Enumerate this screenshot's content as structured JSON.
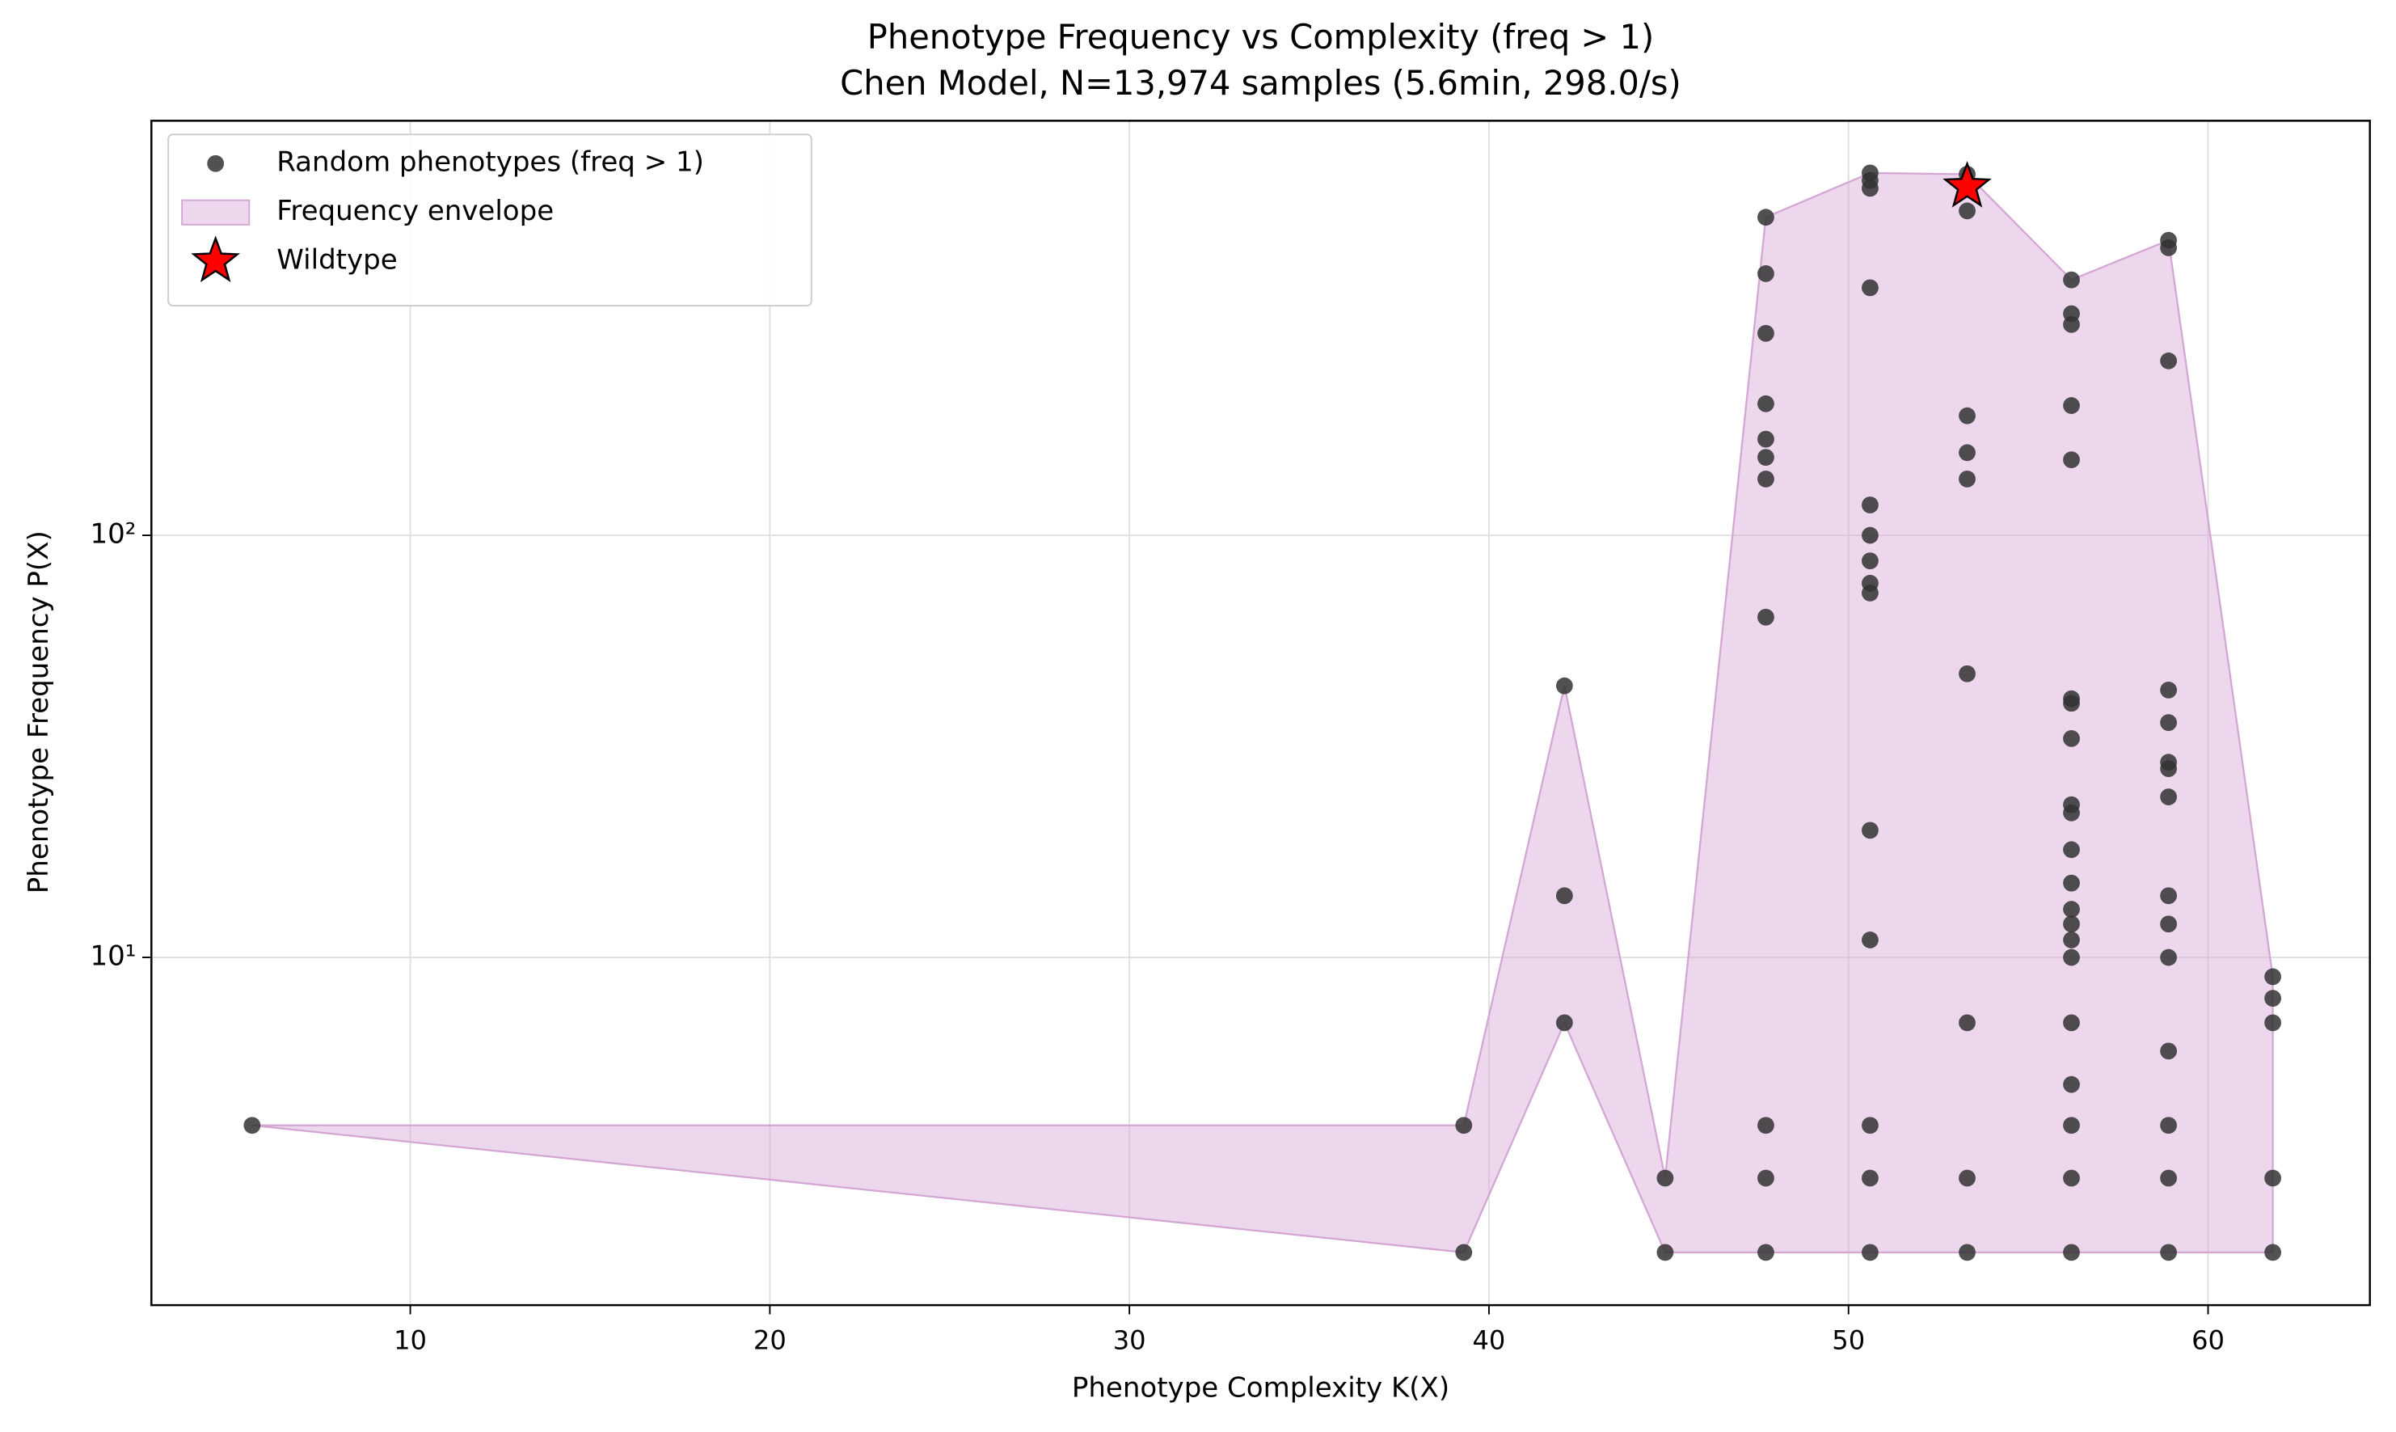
{
  "chart_data": {
    "type": "scatter",
    "title": "Phenotype Frequency vs Complexity (freq > 1)",
    "subtitle": "Chen Model, N=13,974 samples (5.6min, 298.0/s)",
    "xlabel": "Phenotype Complexity K(X)",
    "ylabel": "Phenotype Frequency P(X)",
    "xlim": [
      2.8,
      64.5
    ],
    "ylim": [
      1.5,
      960
    ],
    "xticks": [
      10,
      20,
      30,
      40,
      50,
      60
    ],
    "yticks": [
      {
        "value": 10,
        "label": "10¹"
      },
      {
        "value": 100,
        "label": "10²"
      }
    ],
    "ylog": true,
    "grid": true,
    "legend": "upper left",
    "series": [
      {
        "name": "Random phenotypes (freq > 1)",
        "type": "scatter",
        "color": "#333333",
        "x": [
          5.6,
          39.3,
          39.3,
          42.1,
          42.1,
          42.1,
          44.9,
          44.9,
          47.7,
          47.7,
          47.7,
          47.7,
          47.7,
          47.7,
          47.7,
          47.7,
          47.7,
          47.7,
          47.7,
          50.6,
          50.6,
          50.6,
          50.6,
          50.6,
          50.6,
          50.6,
          50.6,
          50.6,
          50.6,
          50.6,
          50.6,
          50.6,
          50.6,
          53.3,
          53.3,
          53.3,
          53.3,
          53.3,
          53.3,
          53.3,
          53.3,
          53.3,
          56.2,
          56.2,
          56.2,
          56.2,
          56.2,
          56.2,
          56.2,
          56.2,
          56.2,
          56.2,
          56.2,
          56.2,
          56.2,
          56.2,
          56.2,
          56.2,
          56.2,
          56.2,
          56.2,
          56.2,
          56.2,
          58.9,
          58.9,
          58.9,
          58.9,
          58.9,
          58.9,
          58.9,
          58.9,
          58.9,
          58.9,
          58.9,
          58.9,
          58.9,
          58.9,
          58.9,
          61.8,
          61.8,
          61.8,
          61.8,
          61.8
        ],
        "values": [
          4,
          4,
          2,
          44,
          14,
          7,
          3,
          2,
          567,
          417,
          301,
          205,
          169,
          153,
          136,
          64,
          4,
          3,
          2,
          722,
          693,
          664,
          386,
          118,
          100,
          87,
          77,
          73,
          20,
          11,
          4,
          3,
          2,
          717,
          587,
          192,
          157,
          136,
          47,
          7,
          3,
          2,
          403,
          335,
          316,
          203,
          151,
          41,
          40,
          33,
          23,
          22,
          18,
          15,
          13,
          12,
          11,
          10,
          7,
          5,
          4,
          3,
          2,
          500,
          480,
          259,
          43,
          36,
          29,
          28,
          24,
          14,
          12,
          10,
          6,
          4,
          3,
          2,
          9,
          8,
          7,
          3,
          2
        ]
      },
      {
        "name": "Frequency envelope",
        "type": "area",
        "color": "#d4a6d4",
        "x": [
          5.6,
          39.3,
          42.1,
          44.9,
          47.7,
          50.6,
          53.3,
          56.2,
          58.9,
          61.8
        ],
        "upper": [
          4,
          4,
          44,
          3,
          567,
          722,
          717,
          403,
          500,
          9
        ],
        "lower": [
          4,
          2,
          7,
          2,
          2,
          2,
          2,
          2,
          2,
          2
        ]
      },
      {
        "name": "Wildtype",
        "type": "star",
        "color": "#ff0000",
        "x": [
          53.3
        ],
        "values": [
          670
        ]
      }
    ]
  }
}
